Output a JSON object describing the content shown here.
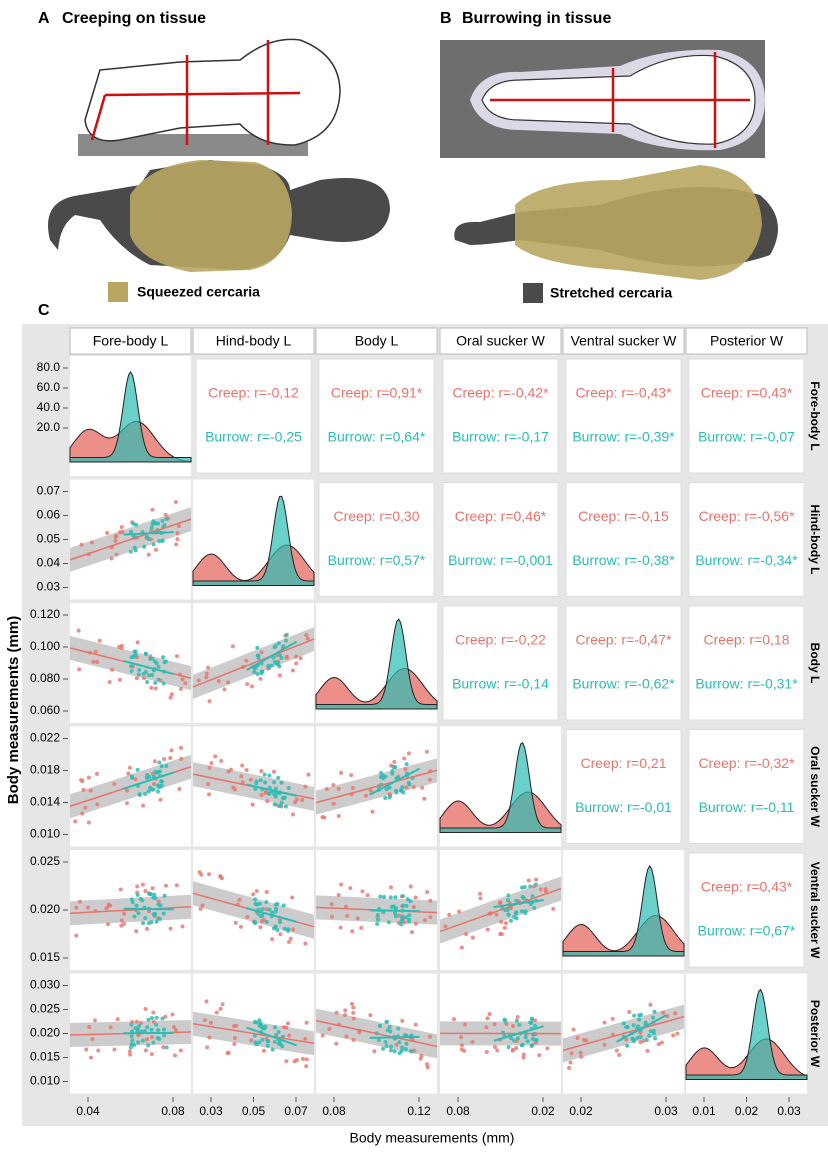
{
  "panels": {
    "a": {
      "letter": "A",
      "title": "Creeping on tissue"
    },
    "b": {
      "letter": "B",
      "title": "Burrowing in tissue"
    },
    "c": {
      "letter": "C"
    }
  },
  "legend": [
    "Squeezed  cercaria",
    "Stretched cercaria"
  ],
  "matrix": {
    "variables": [
      "Fore-body L",
      "Hind-body L",
      "Body L",
      "Oral sucker W",
      "Ventral sucker W",
      "Posterior W"
    ],
    "y_axis_title": "Body measurements (mm)",
    "x_axis_title": "Body measurements (mm)",
    "row_ticks": [
      [
        "80.0",
        "60.0",
        "40.0",
        "20.0"
      ],
      [
        "0.07",
        "0.06",
        "0.05",
        "0.04",
        "0.03"
      ],
      [
        "0.120",
        "0.100",
        "0.080",
        "0.060"
      ],
      [
        "0.022",
        "0.018",
        "0.014",
        "0.010"
      ],
      [
        "0.025",
        "0.020",
        "0.015"
      ],
      [
        "0.030",
        "0.025",
        "0.020",
        "0.015",
        "0.010"
      ]
    ],
    "col_ticks": [
      [
        "0.04",
        "0.08"
      ],
      [
        "0.03",
        "0.05",
        "0.07"
      ],
      [
        "0.08",
        "0.12"
      ],
      [
        "0.08",
        "0.02"
      ],
      [
        "0.02",
        "0.03"
      ],
      [
        "0.01",
        "0.02",
        "0.03"
      ]
    ],
    "correlations": [
      [
        {
          "creep": "Creep: r=-0,12",
          "burrow": "Burrow: r=-0,25"
        },
        {
          "creep": "Creep: r=0,91*",
          "burrow": "Burrow: r=0,64*"
        },
        {
          "creep": "Creep: r=-0,42*",
          "burrow": "Burrow: r=-0,17"
        },
        {
          "creep": "Creep: r=-0,43*",
          "burrow": "Burrow: r=-0,39*"
        },
        {
          "creep": "Creep: r=0,43*",
          "burrow": "Burrow: r=-0,07"
        }
      ],
      [
        {
          "creep": "Creep: r=0,30",
          "burrow": "Burrow: r=0,57*"
        },
        {
          "creep": "Creep: r=0,46*",
          "burrow": "Burrow: r=-0,001"
        },
        {
          "creep": "Creep: r=-0,15",
          "burrow": "Burrow: r=-0,38*"
        },
        {
          "creep": "Creep: r=-0,56*",
          "burrow": "Burrow: r=-0,34*"
        }
      ],
      [
        {
          "creep": "Creep: r=-0,22",
          "burrow": "Burrow: r=-0,14"
        },
        {
          "creep": "Creep: r=-0,47*",
          "burrow": "Burrow: r=-0,62*"
        },
        {
          "creep": "Creep: r=0,18",
          "burrow": "Burrow: r=-0,31*"
        }
      ],
      [
        {
          "creep": "Creep: r=0,21",
          "burrow": "Burrow: r=-0,01"
        },
        {
          "creep": "Creep: r=-0,32*",
          "burrow": "Burrow: r=-0,11"
        }
      ],
      [
        {
          "creep": "Creep: r=0,43*",
          "burrow": "Burrow: r=0,67*"
        }
      ]
    ]
  }
}
